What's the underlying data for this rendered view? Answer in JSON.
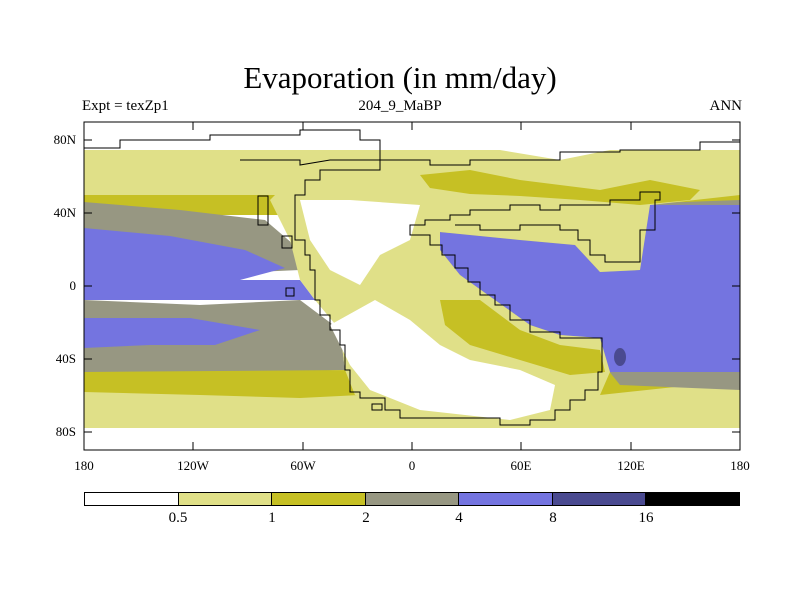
{
  "title": "Evaporation (in mm/day)",
  "subtitle_left": "Expt = texZp1",
  "subtitle_center": "204_9_MaBP",
  "subtitle_right": "ANN",
  "y_ticks": [
    "80N",
    "40N",
    "0",
    "40S",
    "80S"
  ],
  "x_ticks": [
    "180",
    "120W",
    "60W",
    "0",
    "60E",
    "120E",
    "180"
  ],
  "colorbar": {
    "colors": [
      "#ffffff",
      "#e0e088",
      "#c6c024",
      "#979782",
      "#7474e0",
      "#4a4a90",
      "#000000"
    ],
    "labels": [
      "0.5",
      "1",
      "2",
      "4",
      "8",
      "16"
    ]
  },
  "map_colors": {
    "lt05": "#ffffff",
    "c05_1": "#e0e088",
    "c1_2": "#c6c024",
    "c2_4": "#979782",
    "c4_8": "#7474e0",
    "c8_16": "#4a4a90",
    "coast": "#000000"
  }
}
